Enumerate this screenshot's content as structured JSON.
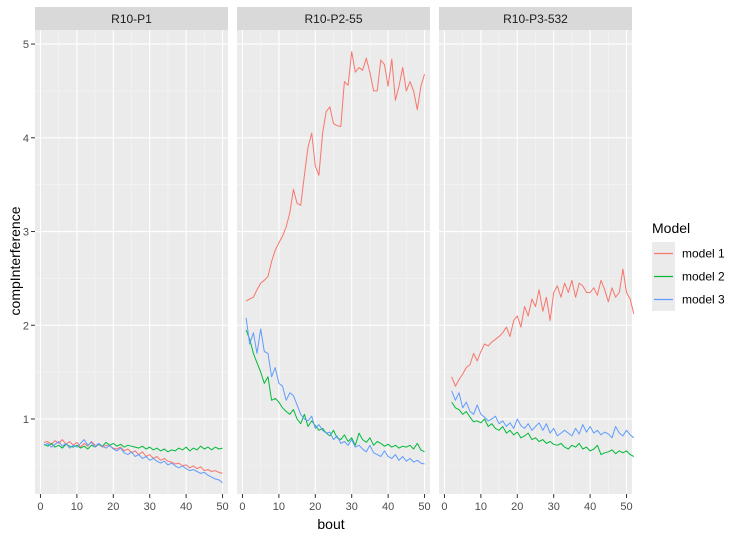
{
  "chart_data": {
    "type": "line",
    "xlabel": "bout",
    "ylabel": "compInterference",
    "xlim": [
      -1.5,
      51.5
    ],
    "ylim": [
      0.2,
      5.15
    ],
    "x_ticks": [
      0,
      10,
      20,
      30,
      40,
      50
    ],
    "x_tick_labels": [
      "0",
      "10",
      "20",
      "30",
      "40",
      "50"
    ],
    "y_ticks": [
      1,
      2,
      3,
      4,
      5
    ],
    "y_tick_labels": [
      "1",
      "2",
      "3",
      "4",
      "5"
    ],
    "legend": {
      "title": "Model",
      "position": "right",
      "entries": [
        {
          "name": "model 1",
          "color": "#F8766D"
        },
        {
          "name": "model 2",
          "color": "#00BA38"
        },
        {
          "name": "model 3",
          "color": "#619CFF"
        }
      ]
    },
    "facets": [
      {
        "label": "R10-P1",
        "x_start": 1,
        "series": [
          {
            "name": "model 1",
            "values": [
              0.75,
              0.76,
              0.73,
              0.77,
              0.74,
              0.78,
              0.73,
              0.76,
              0.72,
              0.75,
              0.7,
              0.74,
              0.71,
              0.76,
              0.72,
              0.73,
              0.7,
              0.72,
              0.71,
              0.69,
              0.68,
              0.7,
              0.66,
              0.68,
              0.64,
              0.66,
              0.62,
              0.65,
              0.6,
              0.62,
              0.58,
              0.6,
              0.56,
              0.58,
              0.55,
              0.54,
              0.52,
              0.53,
              0.5,
              0.51,
              0.48,
              0.5,
              0.47,
              0.49,
              0.45,
              0.46,
              0.44,
              0.45,
              0.43,
              0.42
            ]
          },
          {
            "name": "model 2",
            "values": [
              0.73,
              0.71,
              0.74,
              0.7,
              0.72,
              0.69,
              0.73,
              0.71,
              0.7,
              0.72,
              0.69,
              0.71,
              0.68,
              0.72,
              0.7,
              0.73,
              0.71,
              0.75,
              0.72,
              0.74,
              0.71,
              0.73,
              0.7,
              0.72,
              0.71,
              0.7,
              0.69,
              0.71,
              0.68,
              0.7,
              0.67,
              0.69,
              0.66,
              0.68,
              0.65,
              0.67,
              0.66,
              0.69,
              0.67,
              0.7,
              0.66,
              0.69,
              0.67,
              0.71,
              0.68,
              0.7,
              0.67,
              0.7,
              0.68,
              0.69
            ]
          },
          {
            "name": "model 3",
            "values": [
              0.72,
              0.74,
              0.7,
              0.73,
              0.76,
              0.71,
              0.74,
              0.69,
              0.72,
              0.7,
              0.74,
              0.78,
              0.72,
              0.75,
              0.7,
              0.74,
              0.71,
              0.69,
              0.72,
              0.68,
              0.66,
              0.69,
              0.64,
              0.62,
              0.65,
              0.6,
              0.62,
              0.58,
              0.6,
              0.56,
              0.58,
              0.55,
              0.53,
              0.55,
              0.51,
              0.53,
              0.5,
              0.48,
              0.5,
              0.47,
              0.45,
              0.46,
              0.44,
              0.42,
              0.43,
              0.4,
              0.38,
              0.36,
              0.35,
              0.32
            ]
          }
        ]
      },
      {
        "label": "R10-P2-55",
        "x_start": 1,
        "series": [
          {
            "name": "model 1",
            "values": [
              2.26,
              2.28,
              2.3,
              2.38,
              2.45,
              2.48,
              2.52,
              2.68,
              2.8,
              2.88,
              2.95,
              3.05,
              3.2,
              3.45,
              3.3,
              3.28,
              3.6,
              3.9,
              4.05,
              3.7,
              3.6,
              4.05,
              4.28,
              4.33,
              4.15,
              4.13,
              4.12,
              4.6,
              4.56,
              4.92,
              4.7,
              4.75,
              4.72,
              4.85,
              4.7,
              4.5,
              4.5,
              4.83,
              4.78,
              4.55,
              4.84,
              4.4,
              4.55,
              4.75,
              4.5,
              4.6,
              4.5,
              4.3,
              4.55,
              4.68
            ]
          },
          {
            "name": "model 2",
            "values": [
              1.95,
              1.85,
              1.7,
              1.6,
              1.5,
              1.38,
              1.45,
              1.2,
              1.22,
              1.18,
              1.12,
              1.08,
              1.05,
              1.1,
              1.0,
              0.95,
              1.05,
              0.92,
              0.98,
              0.93,
              0.88,
              0.9,
              0.85,
              0.82,
              0.88,
              0.8,
              0.78,
              0.83,
              0.76,
              0.8,
              0.72,
              0.85,
              0.78,
              0.75,
              0.8,
              0.72,
              0.76,
              0.74,
              0.71,
              0.73,
              0.7,
              0.72,
              0.69,
              0.71,
              0.7,
              0.72,
              0.68,
              0.74,
              0.67,
              0.65
            ]
          },
          {
            "name": "model 3",
            "values": [
              2.08,
              1.8,
              1.92,
              1.7,
              1.96,
              1.72,
              1.7,
              1.45,
              1.55,
              1.38,
              1.35,
              1.2,
              1.28,
              1.25,
              1.15,
              1.05,
              1.0,
              0.98,
              1.03,
              0.9,
              0.94,
              0.88,
              0.85,
              0.86,
              0.78,
              0.82,
              0.74,
              0.76,
              0.72,
              0.78,
              0.7,
              0.72,
              0.68,
              0.65,
              0.72,
              0.64,
              0.62,
              0.6,
              0.66,
              0.6,
              0.58,
              0.62,
              0.56,
              0.6,
              0.55,
              0.58,
              0.54,
              0.56,
              0.53,
              0.52
            ]
          }
        ]
      },
      {
        "label": "R10-P3-532",
        "x_start": 2,
        "series": [
          {
            "name": "model 1",
            "values": [
              1.45,
              1.35,
              1.42,
              1.48,
              1.55,
              1.58,
              1.7,
              1.62,
              1.72,
              1.8,
              1.78,
              1.82,
              1.85,
              1.88,
              1.92,
              1.98,
              1.88,
              2.05,
              2.1,
              1.98,
              2.2,
              2.1,
              2.28,
              2.2,
              2.38,
              2.15,
              2.3,
              2.05,
              2.35,
              2.42,
              2.3,
              2.45,
              2.35,
              2.48,
              2.3,
              2.45,
              2.42,
              2.35,
              2.35,
              2.4,
              2.32,
              2.48,
              2.38,
              2.25,
              2.4,
              2.3,
              2.35,
              2.6,
              2.35,
              2.28,
              2.12
            ]
          },
          {
            "name": "model 2",
            "values": [
              1.18,
              1.12,
              1.1,
              1.05,
              1.08,
              1.02,
              0.97,
              0.98,
              0.96,
              1.0,
              0.92,
              0.95,
              0.9,
              0.88,
              0.92,
              0.85,
              0.88,
              0.83,
              0.86,
              0.8,
              0.82,
              0.85,
              0.78,
              0.8,
              0.76,
              0.78,
              0.74,
              0.76,
              0.73,
              0.72,
              0.74,
              0.7,
              0.68,
              0.72,
              0.7,
              0.74,
              0.68,
              0.7,
              0.66,
              0.68,
              0.72,
              0.62,
              0.64,
              0.65,
              0.67,
              0.63,
              0.66,
              0.64,
              0.66,
              0.62,
              0.6
            ]
          },
          {
            "name": "model 3",
            "values": [
              1.3,
              1.2,
              1.28,
              1.12,
              1.18,
              1.08,
              1.05,
              1.15,
              1.05,
              1.02,
              0.98,
              1.0,
              1.03,
              0.95,
              0.98,
              0.92,
              0.96,
              0.9,
              1.0,
              0.93,
              0.9,
              0.95,
              0.88,
              0.92,
              0.96,
              0.88,
              0.95,
              0.85,
              0.9,
              0.82,
              0.85,
              0.88,
              0.85,
              0.82,
              0.9,
              0.84,
              0.94,
              0.86,
              0.92,
              0.85,
              0.88,
              0.83,
              0.86,
              0.84,
              0.8,
              0.92,
              0.85,
              0.82,
              0.88,
              0.83,
              0.8
            ]
          }
        ]
      }
    ]
  }
}
